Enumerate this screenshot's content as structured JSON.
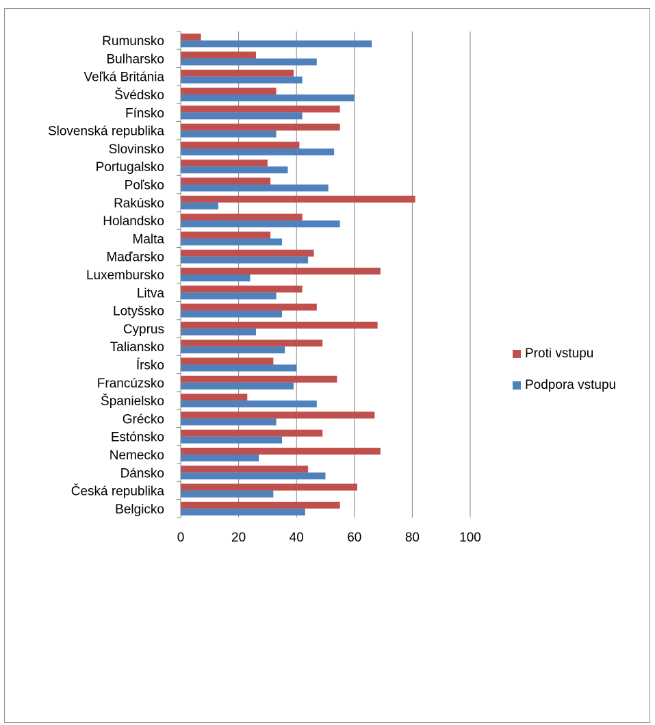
{
  "chart_data": {
    "type": "bar",
    "orientation": "horizontal",
    "categories": [
      "Rumunsko",
      "Bulharsko",
      "Veľká Británia",
      "Švédsko",
      "Fínsko",
      "Slovenská republika",
      "Slovinsko",
      "Portugalsko",
      "Poľsko",
      "Rakúsko",
      "Holandsko",
      "Malta",
      "Maďarsko",
      "Luxembursko",
      "Litva",
      "Lotyšsko",
      "Cyprus",
      "Taliansko",
      "Írsko",
      "Francúzsko",
      "Španielsko",
      "Grécko",
      "Estónsko",
      "Nemecko",
      "Dánsko",
      "Česká republika",
      "Belgicko"
    ],
    "series": [
      {
        "name": "Proti vstupu",
        "color": "#c0504d",
        "values": [
          7,
          26,
          39,
          33,
          55,
          55,
          41,
          30,
          31,
          81,
          42,
          31,
          46,
          69,
          42,
          47,
          68,
          49,
          32,
          54,
          23,
          67,
          49,
          69,
          44,
          61,
          55
        ]
      },
      {
        "name": "Podpora vstupu",
        "color": "#4f81bd",
        "values": [
          66,
          47,
          42,
          60,
          42,
          33,
          53,
          37,
          51,
          13,
          55,
          35,
          44,
          24,
          33,
          35,
          26,
          36,
          40,
          39,
          47,
          33,
          35,
          27,
          50,
          32,
          43
        ]
      }
    ],
    "xlim": [
      0,
      100
    ],
    "xticks": [
      "0",
      "20",
      "40",
      "60",
      "80",
      "100"
    ],
    "title": "",
    "xlabel": "",
    "ylabel": "",
    "grid": true,
    "legend_position": "right"
  }
}
